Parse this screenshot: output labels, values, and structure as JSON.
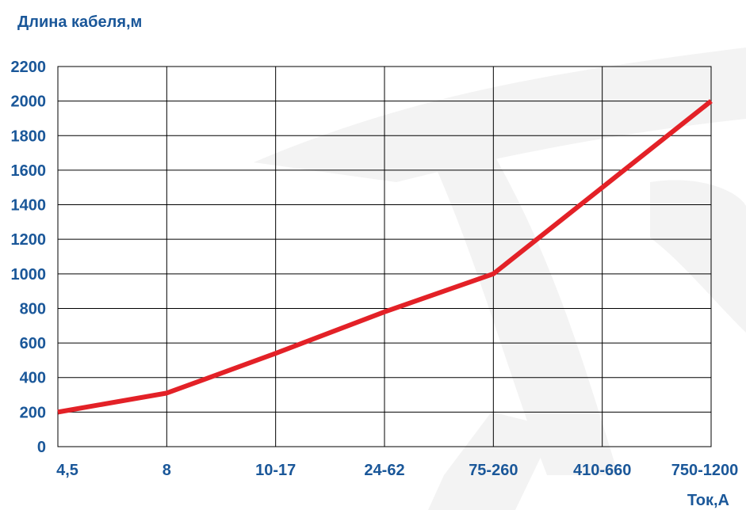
{
  "chart_data": {
    "type": "line",
    "ylabel": "Длина кабеля,м",
    "xlabel": "Ток,А",
    "categories": [
      "4,5",
      "8",
      "10-17",
      "24-62",
      "75-260",
      "410-660",
      "750-1200"
    ],
    "series": [
      {
        "values": [
          200,
          310,
          540,
          780,
          1000,
          1500,
          2000
        ]
      }
    ],
    "ylim": [
      0,
      2200
    ],
    "yticks": [
      "0",
      "200",
      "400",
      "600",
      "800",
      "1000",
      "1200",
      "1400",
      "1600",
      "1800",
      "2000",
      "2200"
    ],
    "grid": true,
    "colors": {
      "line": "#e32127",
      "labels": "#1a5799",
      "grid": "#000000",
      "watermark": "#f2f2f2"
    }
  }
}
